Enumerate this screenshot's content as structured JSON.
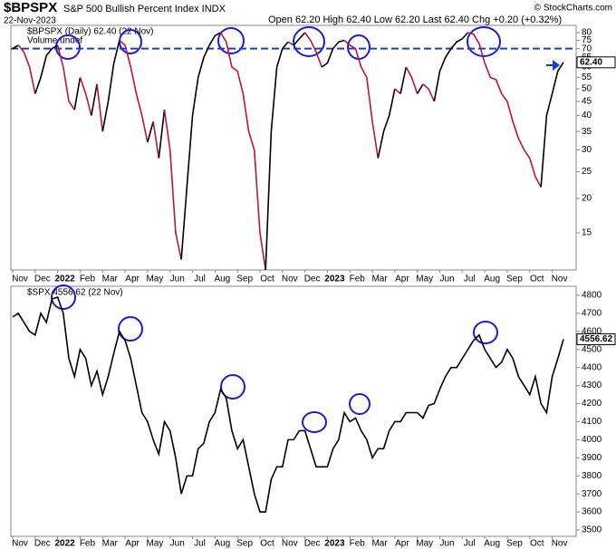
{
  "chart_data": [
    {
      "type": "line",
      "title": "$BPSPX",
      "subtitle": "S&P 500 Bullish Percent Index INDX",
      "date": "22-Nov-2023",
      "quote": "Open 62.20 High 62.40 Low 62.20 Last 62.40 Chg +0.20 (+0.32%)",
      "credit": "© StockCharts.com",
      "legend_extra": "Volume undef",
      "last_label": "62.40",
      "log_scale": true,
      "grid": false,
      "up_color": "#000000",
      "down_color": "#c0143c",
      "reference_line": {
        "value": 70,
        "color": "#1a3cd6"
      },
      "categories": [
        "Nov",
        null,
        null,
        null,
        "Dec",
        null,
        null,
        null,
        "2022",
        null,
        null,
        null,
        "Feb",
        null,
        null,
        null,
        "Mar",
        null,
        null,
        null,
        "Apr",
        null,
        null,
        null,
        "May",
        null,
        null,
        null,
        "Jun",
        null,
        null,
        null,
        "Jul",
        null,
        null,
        null,
        "Aug",
        null,
        null,
        null,
        "Sep",
        null,
        null,
        null,
        "Oct",
        null,
        null,
        null,
        "Nov",
        null,
        null,
        null,
        "Dec",
        null,
        null,
        null,
        "2023",
        null,
        null,
        null,
        "Feb",
        null,
        null,
        null,
        "Mar",
        null,
        null,
        null,
        "Apr",
        null,
        null,
        null,
        "May",
        null,
        null,
        null,
        "Jun",
        null,
        null,
        null,
        "Jul",
        null,
        null,
        null,
        "Aug",
        null,
        null,
        null,
        "Sep",
        null,
        null,
        null,
        "Oct",
        null,
        null,
        null,
        "Nov",
        null,
        null
      ],
      "series": [
        {
          "name": "$BPSPX (Daily) 62.40 (22 Nov)",
          "values": [
            70,
            72,
            68,
            60,
            48,
            55,
            66,
            70,
            72,
            60,
            45,
            42,
            55,
            48,
            40,
            52,
            35,
            45,
            62,
            75,
            72,
            60,
            48,
            40,
            32,
            38,
            28,
            42,
            30,
            15,
            12,
            22,
            40,
            55,
            65,
            72,
            78,
            80,
            74,
            60,
            58,
            48,
            35,
            30,
            15,
            11,
            35,
            60,
            70,
            74,
            72,
            76,
            80,
            75,
            68,
            60,
            62,
            70,
            74,
            75,
            72,
            70,
            60,
            55,
            38,
            28,
            35,
            40,
            50,
            48,
            60,
            55,
            48,
            52,
            50,
            45,
            58,
            65,
            70,
            74,
            76,
            80,
            79,
            73,
            62,
            55,
            54,
            48,
            45,
            38,
            33,
            30,
            28,
            24,
            22,
            40,
            48,
            58,
            62.4
          ]
        }
      ],
      "ylim": [
        11,
        85
      ],
      "yticks": [
        15,
        20,
        25,
        30,
        35,
        40,
        45,
        50,
        55,
        60,
        65,
        70,
        75,
        80
      ]
    },
    {
      "type": "line",
      "last_label": "4556.62",
      "grid": false,
      "color": "#000000",
      "categories": [
        "Nov",
        null,
        null,
        null,
        "Dec",
        null,
        null,
        null,
        "2022",
        null,
        null,
        null,
        "Feb",
        null,
        null,
        null,
        "Mar",
        null,
        null,
        null,
        "Apr",
        null,
        null,
        null,
        "May",
        null,
        null,
        null,
        "Jun",
        null,
        null,
        null,
        "Jul",
        null,
        null,
        null,
        "Aug",
        null,
        null,
        null,
        "Sep",
        null,
        null,
        null,
        "Oct",
        null,
        null,
        null,
        "Nov",
        null,
        null,
        null,
        "Dec",
        null,
        null,
        null,
        "2023",
        null,
        null,
        null,
        "Feb",
        null,
        null,
        null,
        "Mar",
        null,
        null,
        null,
        "Apr",
        null,
        null,
        null,
        "May",
        null,
        null,
        null,
        "Jun",
        null,
        null,
        null,
        "Jul",
        null,
        null,
        null,
        "Aug",
        null,
        null,
        null,
        "Sep",
        null,
        null,
        null,
        "Oct",
        null,
        null,
        null,
        "Nov",
        null,
        null
      ],
      "series": [
        {
          "name": "$SPX 4556.62 (22 Nov)",
          "values": [
            4680,
            4700,
            4650,
            4600,
            4580,
            4700,
            4650,
            4780,
            4790,
            4700,
            4450,
            4350,
            4500,
            4450,
            4300,
            4380,
            4250,
            4350,
            4480,
            4600,
            4550,
            4450,
            4300,
            4150,
            4100,
            4000,
            3920,
            4100,
            4050,
            3900,
            3700,
            3800,
            3800,
            3950,
            3980,
            4100,
            4150,
            4280,
            4230,
            4050,
            3950,
            4000,
            3850,
            3700,
            3600,
            3600,
            3780,
            3850,
            3850,
            4000,
            4000,
            4050,
            4050,
            3950,
            3850,
            3850,
            3850,
            3950,
            4000,
            4150,
            4100,
            4120,
            4050,
            4000,
            3900,
            3950,
            3950,
            4050,
            4100,
            4100,
            4150,
            4150,
            4150,
            4120,
            4190,
            4200,
            4280,
            4350,
            4400,
            4400,
            4450,
            4500,
            4550,
            4580,
            4500,
            4450,
            4400,
            4430,
            4500,
            4450,
            4350,
            4300,
            4250,
            4350,
            4200,
            4150,
            4350,
            4450,
            4556.62
          ]
        }
      ],
      "ylim": [
        3465,
        4850
      ],
      "yticks": [
        3500,
        3600,
        3700,
        3800,
        3900,
        4000,
        4100,
        4200,
        4300,
        4400,
        4500,
        4600,
        4700,
        4800
      ]
    }
  ]
}
